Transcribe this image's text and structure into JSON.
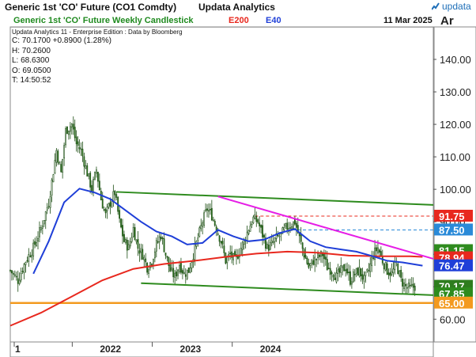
{
  "window": {
    "title": "Generic 1st 'CO' Future (CO1 Comdty)",
    "app_name": "Updata Analytics",
    "logo_text": "updata"
  },
  "chart_header": {
    "chart_title": "Generic 1st 'CO' Future Weekly Candlestick",
    "ema200_label": "E200",
    "ema40_label": "E40",
    "date": "11 Mar 2025",
    "axis_tag": "Ar"
  },
  "info_panel": {
    "source": "Updata Analytics 11 - Enterprise Edition : Data by Bloomberg",
    "close": "C: 70.1700 +0.8900 (1.28%)",
    "high": "H: 70.2600",
    "low": "L: 68.6300",
    "open": "O: 69.0500",
    "time": "T: 14:50:52"
  },
  "colors": {
    "ema200": "#e8281e",
    "ema40": "#1f3fd8",
    "channel": "#2e8b1e",
    "downtrend": "#e61ee6",
    "support": "#f39a1f",
    "level_91": "#e8281e",
    "level_87": "#2a8ad8",
    "candle_up": "#ffffff",
    "candle_down": "#2e7d1e",
    "title_green": "#1f8a1f"
  },
  "chart_data": {
    "type": "candlestick",
    "title": "Generic 1st 'CO' Future Weekly Candlestick",
    "x_ticks": [
      "1",
      "2022",
      "2023",
      "2024"
    ],
    "y_ticks": [
      60,
      70,
      80,
      90,
      100,
      110,
      120,
      130,
      140
    ],
    "y_tick_labels": [
      "60.00",
      "70.00",
      "80.00",
      "90.00",
      "100.00",
      "110.00",
      "120.00",
      "130.00",
      "140.00"
    ],
    "ylim": [
      53,
      150
    ],
    "grid": false,
    "price_tags": [
      {
        "label": "91.75",
        "value": 91.75,
        "kind": "level_91"
      },
      {
        "label": "87.50",
        "value": 87.5,
        "kind": "level_87"
      },
      {
        "label": "81.15",
        "value": 81.15,
        "kind": "channel"
      },
      {
        "label": "78.94",
        "value": 78.94,
        "kind": "ema200"
      },
      {
        "label": "76.47",
        "value": 76.47,
        "kind": "ema40"
      },
      {
        "label": "70.17",
        "value": 70.17,
        "kind": "candle_down"
      },
      {
        "label": "67.85",
        "value": 67.85,
        "kind": "channel"
      },
      {
        "label": "65.00",
        "value": 65.0,
        "kind": "support"
      }
    ],
    "horizontal_levels": [
      {
        "value": 91.75,
        "from_week": 159,
        "kind": "level_91"
      },
      {
        "value": 87.5,
        "from_week": 183,
        "kind": "level_87"
      },
      {
        "value": 65.0,
        "from_week": 0,
        "kind": "support"
      }
    ],
    "trendlines": [
      {
        "kind": "channel",
        "from": [
          69,
          99.2
        ],
        "to": [
          275,
          95.2
        ]
      },
      {
        "kind": "channel",
        "from": [
          85,
          71.1
        ],
        "to": [
          275,
          67.4
        ]
      },
      {
        "kind": "downtrend",
        "from": [
          135,
          97.8
        ],
        "to": [
          275,
          78.6
        ]
      }
    ],
    "ema200": [
      [
        0,
        58
      ],
      [
        20,
        62
      ],
      [
        40,
        67
      ],
      [
        60,
        72
      ],
      [
        80,
        75.5
      ],
      [
        100,
        77
      ],
      [
        120,
        78
      ],
      [
        140,
        79.2
      ],
      [
        160,
        80.2
      ],
      [
        180,
        80.8
      ],
      [
        200,
        80.5
      ],
      [
        220,
        79.6
      ],
      [
        240,
        79.4
      ],
      [
        260,
        79.4
      ],
      [
        268,
        79.2
      ]
    ],
    "ema40": [
      [
        15,
        74
      ],
      [
        25,
        84
      ],
      [
        35,
        96
      ],
      [
        45,
        100.2
      ],
      [
        55,
        99
      ],
      [
        65,
        97
      ],
      [
        75,
        93.5
      ],
      [
        85,
        90
      ],
      [
        95,
        87
      ],
      [
        105,
        85.5
      ],
      [
        115,
        83
      ],
      [
        125,
        83.5
      ],
      [
        135,
        87.5
      ],
      [
        145,
        85.5
      ],
      [
        155,
        84
      ],
      [
        165,
        84.5
      ],
      [
        175,
        86.5
      ],
      [
        185,
        87.8
      ],
      [
        195,
        84
      ],
      [
        205,
        82.2
      ],
      [
        215,
        81.5
      ],
      [
        225,
        80.8
      ],
      [
        235,
        79.5
      ],
      [
        245,
        78
      ],
      [
        255,
        77.5
      ],
      [
        268,
        76.5
      ]
    ],
    "weekly_close": [
      [
        0,
        75
      ],
      [
        5,
        72
      ],
      [
        10,
        78
      ],
      [
        15,
        82
      ],
      [
        20,
        88
      ],
      [
        25,
        96
      ],
      [
        30,
        112
      ],
      [
        33,
        105
      ],
      [
        36,
        118
      ],
      [
        40,
        120
      ],
      [
        43,
        114
      ],
      [
        46,
        112
      ],
      [
        50,
        105
      ],
      [
        53,
        100
      ],
      [
        56,
        106
      ],
      [
        59,
        97
      ],
      [
        62,
        92
      ],
      [
        65,
        96
      ],
      [
        68,
        99
      ],
      [
        71,
        90
      ],
      [
        74,
        84
      ],
      [
        77,
        82
      ],
      [
        80,
        88
      ],
      [
        83,
        82
      ],
      [
        86,
        80
      ],
      [
        89,
        76
      ],
      [
        92,
        78
      ],
      [
        95,
        83
      ],
      [
        98,
        86
      ],
      [
        101,
        80
      ],
      [
        104,
        75
      ],
      [
        107,
        73
      ],
      [
        110,
        77
      ],
      [
        113,
        74
      ],
      [
        116,
        75
      ],
      [
        119,
        80
      ],
      [
        122,
        85
      ],
      [
        125,
        90
      ],
      [
        128,
        94
      ],
      [
        131,
        92
      ],
      [
        134,
        88
      ],
      [
        137,
        84
      ],
      [
        140,
        78
      ],
      [
        143,
        80
      ],
      [
        146,
        78
      ],
      [
        149,
        81
      ],
      [
        152,
        84
      ],
      [
        155,
        88
      ],
      [
        158,
        91
      ],
      [
        161,
        90
      ],
      [
        164,
        86
      ],
      [
        167,
        82
      ],
      [
        170,
        83
      ],
      [
        173,
        85
      ],
      [
        176,
        86
      ],
      [
        179,
        88
      ],
      [
        182,
        89
      ],
      [
        185,
        90
      ],
      [
        188,
        85
      ],
      [
        191,
        80
      ],
      [
        194,
        76
      ],
      [
        197,
        78
      ],
      [
        200,
        79
      ],
      [
        203,
        80
      ],
      [
        206,
        76
      ],
      [
        209,
        75
      ],
      [
        212,
        73
      ],
      [
        215,
        75
      ],
      [
        218,
        76
      ],
      [
        221,
        72
      ],
      [
        224,
        74
      ],
      [
        227,
        75
      ],
      [
        230,
        72
      ],
      [
        233,
        75
      ],
      [
        236,
        80
      ],
      [
        239,
        82
      ],
      [
        242,
        78
      ],
      [
        245,
        75
      ],
      [
        248,
        74
      ],
      [
        251,
        77
      ],
      [
        254,
        72
      ],
      [
        257,
        70
      ],
      [
        260,
        69.5
      ],
      [
        263,
        70.17
      ]
    ]
  }
}
